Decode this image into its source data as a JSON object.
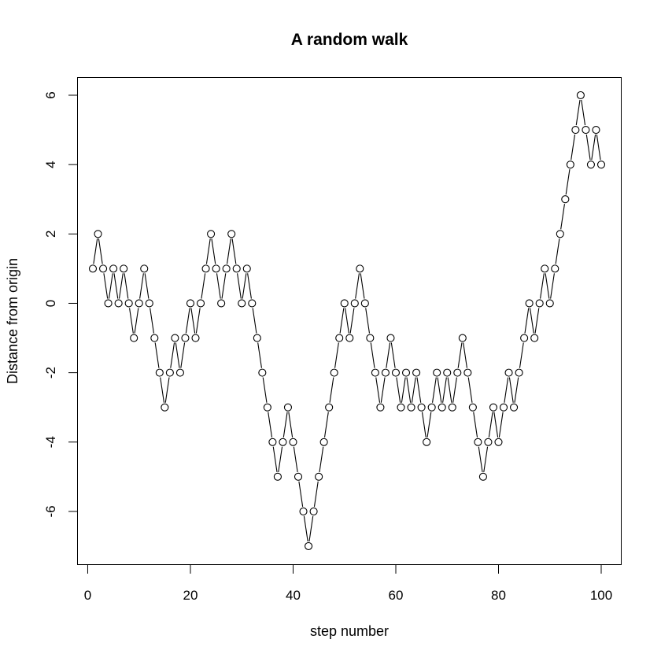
{
  "chart_data": {
    "type": "line",
    "title": "A random walk",
    "xlabel": "step number",
    "ylabel": "Distance from origin",
    "xlim": [
      1,
      100
    ],
    "ylim": [
      -7,
      6
    ],
    "xticks": [
      0,
      20,
      40,
      60,
      80,
      100
    ],
    "yticks": [
      -6,
      -4,
      -2,
      0,
      2,
      4,
      6
    ],
    "grid": false,
    "legend": "none",
    "marker": "open-circle",
    "line_color": "#000000",
    "x": [
      1,
      2,
      3,
      4,
      5,
      6,
      7,
      8,
      9,
      10,
      11,
      12,
      13,
      14,
      15,
      16,
      17,
      18,
      19,
      20,
      21,
      22,
      23,
      24,
      25,
      26,
      27,
      28,
      29,
      30,
      31,
      32,
      33,
      34,
      35,
      36,
      37,
      38,
      39,
      40,
      41,
      42,
      43,
      44,
      45,
      46,
      47,
      48,
      49,
      50,
      51,
      52,
      53,
      54,
      55,
      56,
      57,
      58,
      59,
      60,
      61,
      62,
      63,
      64,
      65,
      66,
      67,
      68,
      69,
      70,
      71,
      72,
      73,
      74,
      75,
      76,
      77,
      78,
      79,
      80,
      81,
      82,
      83,
      84,
      85,
      86,
      87,
      88,
      89,
      90,
      91,
      92,
      93,
      94,
      95,
      96,
      97,
      98,
      99,
      100
    ],
    "y": [
      1,
      2,
      1,
      0,
      1,
      0,
      1,
      0,
      -1,
      0,
      1,
      0,
      -1,
      -2,
      -3,
      -2,
      -1,
      -2,
      -1,
      0,
      -1,
      0,
      1,
      2,
      1,
      0,
      1,
      2,
      1,
      0,
      1,
      0,
      -1,
      -2,
      -3,
      -4,
      -5,
      -4,
      -3,
      -4,
      -5,
      -6,
      -7,
      -6,
      -5,
      -4,
      -3,
      -2,
      -1,
      0,
      -1,
      0,
      1,
      0,
      -1,
      -2,
      -3,
      -2,
      -1,
      -2,
      -3,
      -2,
      -3,
      -2,
      -3,
      -4,
      -3,
      -2,
      -3,
      -2,
      -3,
      -2,
      -1,
      -2,
      -3,
      -4,
      -5,
      -4,
      -3,
      -4,
      -3,
      -2,
      -3,
      -2,
      -1,
      0,
      -1,
      0,
      1,
      0,
      1,
      2,
      3,
      4,
      5,
      6,
      5,
      4,
      5,
      4
    ]
  }
}
